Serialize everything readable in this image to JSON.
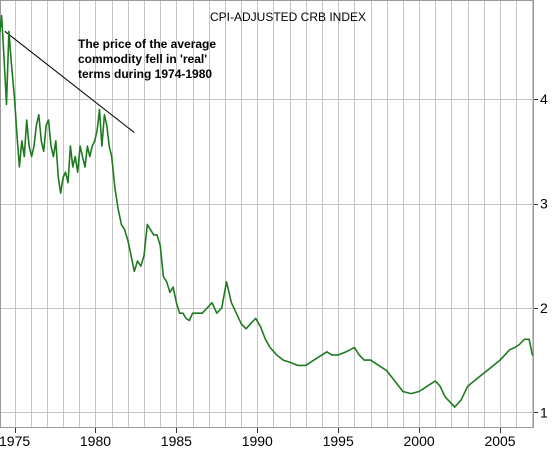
{
  "chart_data": {
    "type": "line",
    "title": "CPI-ADJUSTED CRB INDEX",
    "xlabel": "",
    "ylabel": "",
    "xlim": [
      1974.1,
      2007.1
    ],
    "ylim": [
      0.85,
      4.95
    ],
    "x_ticks": [
      1975,
      1980,
      1985,
      1990,
      1995,
      2000,
      2005
    ],
    "y_ticks": [
      1,
      2,
      3,
      4
    ],
    "grid": true,
    "legend": "none",
    "line_color": "#1e7a1e",
    "annotation": {
      "lines": [
        "The price of the average",
        "commodity fell in 'real'",
        "terms during 1974-1980"
      ]
    },
    "trend_line": {
      "x": [
        1974.4,
        1982.4
      ],
      "y": [
        4.65,
        3.68
      ]
    },
    "series": [
      {
        "x": [
          1974.1,
          1974.2,
          1974.35,
          1974.5,
          1974.65,
          1974.8,
          1975.0,
          1975.15,
          1975.3,
          1975.45,
          1975.6,
          1975.75,
          1975.9,
          1976.05,
          1976.2,
          1976.35,
          1976.5,
          1976.65,
          1976.8,
          1976.95,
          1977.1,
          1977.25,
          1977.4,
          1977.55,
          1977.7,
          1977.85,
          1978.0,
          1978.15,
          1978.3,
          1978.45,
          1978.6,
          1978.75,
          1978.9,
          1979.05,
          1979.2,
          1979.35,
          1979.5,
          1979.65,
          1979.8,
          1979.95,
          1980.1,
          1980.25,
          1980.4,
          1980.55,
          1980.7,
          1980.85,
          1981.0,
          1981.2,
          1981.4,
          1981.6,
          1981.8,
          1982.0,
          1982.2,
          1982.4,
          1982.6,
          1982.8,
          1983.0,
          1983.2,
          1983.4,
          1983.6,
          1983.8,
          1984.0,
          1984.2,
          1984.4,
          1984.6,
          1984.8,
          1985.0,
          1985.2,
          1985.4,
          1985.6,
          1985.8,
          1986.0,
          1986.3,
          1986.6,
          1986.9,
          1987.2,
          1987.5,
          1987.8,
          1988.1,
          1988.4,
          1988.7,
          1989.0,
          1989.3,
          1989.6,
          1989.9,
          1990.2,
          1990.5,
          1990.8,
          1991.2,
          1991.6,
          1992.0,
          1992.5,
          1993.0,
          1993.5,
          1994.0,
          1994.3,
          1994.6,
          1995.0,
          1995.5,
          1996.0,
          1996.3,
          1996.6,
          1997.0,
          1997.5,
          1998.0,
          1998.5,
          1999.0,
          1999.5,
          2000.0,
          2000.5,
          2001.0,
          2001.3,
          2001.6,
          2001.9,
          2002.2,
          2002.6,
          2003.0,
          2003.4,
          2003.8,
          2004.2,
          2004.6,
          2005.0,
          2005.3,
          2005.6,
          2005.9,
          2006.2,
          2006.5,
          2006.8,
          2007.0
        ],
        "y": [
          4.65,
          4.8,
          4.4,
          3.95,
          4.65,
          4.35,
          4.0,
          3.65,
          3.35,
          3.6,
          3.45,
          3.8,
          3.55,
          3.45,
          3.55,
          3.75,
          3.85,
          3.6,
          3.5,
          3.75,
          3.8,
          3.55,
          3.45,
          3.6,
          3.25,
          3.1,
          3.25,
          3.3,
          3.2,
          3.55,
          3.35,
          3.45,
          3.3,
          3.55,
          3.45,
          3.35,
          3.55,
          3.45,
          3.55,
          3.6,
          3.7,
          3.9,
          3.55,
          3.85,
          3.75,
          3.55,
          3.45,
          3.15,
          2.95,
          2.8,
          2.75,
          2.65,
          2.5,
          2.35,
          2.45,
          2.4,
          2.5,
          2.8,
          2.75,
          2.7,
          2.7,
          2.6,
          2.3,
          2.25,
          2.15,
          2.2,
          2.05,
          1.95,
          1.95,
          1.9,
          1.88,
          1.95,
          1.95,
          1.95,
          2.0,
          2.05,
          1.95,
          2.0,
          2.25,
          2.05,
          1.95,
          1.85,
          1.8,
          1.85,
          1.9,
          1.82,
          1.7,
          1.62,
          1.55,
          1.5,
          1.48,
          1.45,
          1.45,
          1.5,
          1.55,
          1.58,
          1.55,
          1.55,
          1.58,
          1.62,
          1.55,
          1.5,
          1.5,
          1.45,
          1.4,
          1.3,
          1.2,
          1.18,
          1.2,
          1.25,
          1.3,
          1.25,
          1.15,
          1.1,
          1.05,
          1.12,
          1.25,
          1.3,
          1.35,
          1.4,
          1.45,
          1.5,
          1.55,
          1.6,
          1.62,
          1.65,
          1.7,
          1.7,
          1.55
        ]
      }
    ]
  }
}
